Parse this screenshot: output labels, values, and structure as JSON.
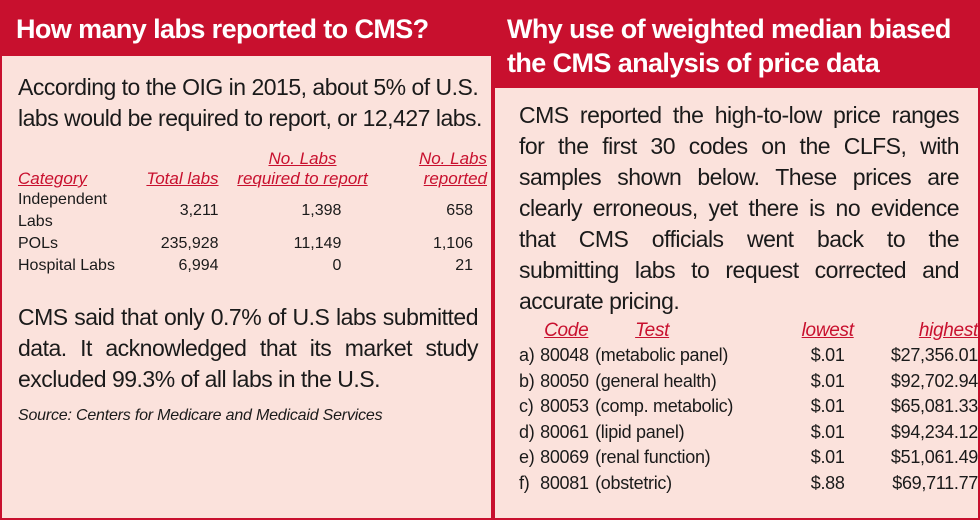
{
  "left": {
    "title": "How many labs reported to CMS?",
    "intro": "According to the OIG in 2015, about 5% of U.S. labs would be required to report, or 12,427 labs.",
    "headers": {
      "category": "Category",
      "total": "Total labs",
      "required_line1": "No. Labs",
      "required_line2": "required to report",
      "reported_line1": "No. Labs",
      "reported_line2": "reported"
    },
    "rows": [
      {
        "category": "Independent Labs",
        "total": "3,211",
        "required": "1,398",
        "reported": "658"
      },
      {
        "category": "POLs",
        "total": "235,928",
        "required": "11,149",
        "reported": "1,106"
      },
      {
        "category": "Hospital Labs",
        "total": "6,994",
        "required": "0",
        "reported": "21"
      }
    ],
    "para2": "CMS said that only 0.7% of U.S labs submitted data. It acknowledged that its market study excluded 99.3% of all labs in the U.S.",
    "source": "Source: Centers for Medicare and Medicaid Services"
  },
  "right": {
    "title_line1": "Why use of weighted median biased",
    "title_line2": "the CMS analysis of price data",
    "intro": "CMS reported the high-to-low price ranges for the first 30 codes on the CLFS, with samples shown below. These prices are clearly erroneous, yet there is no evidence that CMS officials went back to the submitting labs to request corrected and accurate pricing.",
    "headers": {
      "code": "Code",
      "test": "Test",
      "lowest": "lowest",
      "highest": "highest"
    },
    "rows": [
      {
        "letter": "a)",
        "code": "80048",
        "test": "(metabolic panel)",
        "lowest": "$.01",
        "highest": "$27,356.01"
      },
      {
        "letter": "b)",
        "code": "80050",
        "test": "(general health)",
        "lowest": "$.01",
        "highest": "$92,702.94"
      },
      {
        "letter": "c)",
        "code": "80053",
        "test": "(comp. metabolic)",
        "lowest": "$.01",
        "highest": "$65,081.33"
      },
      {
        "letter": "d)",
        "code": "80061",
        "test": "(lipid panel)",
        "lowest": "$.01",
        "highest": "$94,234.12"
      },
      {
        "letter": "e)",
        "code": "80069",
        "test": "(renal function)",
        "lowest": "$.01",
        "highest": "$51,061.49"
      },
      {
        "letter": "f)",
        "code": "80081",
        "test": "(obstetric)",
        "lowest": "$.88",
        "highest": "$69,711.77"
      }
    ]
  }
}
